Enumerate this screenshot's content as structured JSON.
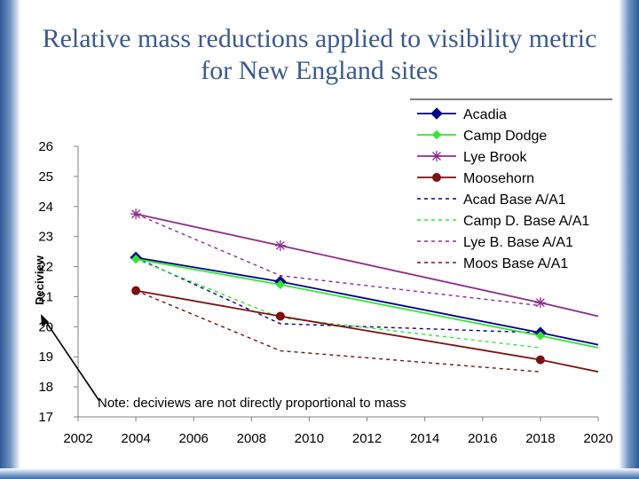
{
  "slide": {
    "title_lines": [
      "Relative mass reductions applied to visibility metric",
      "for New England sites"
    ]
  },
  "chart_data": {
    "type": "line",
    "ylabel": "Deciview",
    "xlim": [
      2002,
      2020
    ],
    "ylim": [
      17,
      26
    ],
    "xticks": [
      2002,
      2004,
      2006,
      2008,
      2010,
      2012,
      2014,
      2016,
      2018,
      2020
    ],
    "yticks": [
      17,
      18,
      19,
      20,
      21,
      22,
      23,
      24,
      25,
      26
    ],
    "series": [
      {
        "name": "Acadia",
        "color": "#00008b",
        "dash": "solid",
        "marker": "diamond",
        "x": [
          2004,
          2009,
          2018,
          2020
        ],
        "y": [
          22.3,
          21.5,
          19.8,
          19.4
        ],
        "markers_on": [
          true,
          true,
          true,
          false
        ]
      },
      {
        "name": "Camp Dodge",
        "color": "#33e633",
        "dash": "solid",
        "marker": "diamond-small",
        "x": [
          2004,
          2009,
          2018,
          2020
        ],
        "y": [
          22.25,
          21.4,
          19.7,
          19.3
        ],
        "markers_on": [
          true,
          true,
          true,
          false
        ]
      },
      {
        "name": "Lye Brook",
        "color": "#8b2e8b",
        "dash": "solid",
        "marker": "asterisk",
        "x": [
          2004,
          2009,
          2018,
          2020
        ],
        "y": [
          23.75,
          22.7,
          20.8,
          20.35
        ],
        "markers_on": [
          true,
          true,
          true,
          false
        ]
      },
      {
        "name": "Moosehorn",
        "color": "#7b1010",
        "dash": "solid",
        "marker": "circle",
        "x": [
          2004,
          2009,
          2018,
          2020
        ],
        "y": [
          21.2,
          20.35,
          18.9,
          18.5
        ],
        "markers_on": [
          true,
          true,
          true,
          false
        ]
      },
      {
        "name": "Acad Base A/A1",
        "color": "#00008b",
        "dash": "dashed",
        "x": [
          2004,
          2009,
          2018
        ],
        "y": [
          22.3,
          20.1,
          19.8
        ]
      },
      {
        "name": "Camp D. Base A/A1",
        "color": "#33e633",
        "dash": "dashed",
        "x": [
          2004,
          2009,
          2018
        ],
        "y": [
          22.25,
          20.3,
          19.3
        ]
      },
      {
        "name": "Lye B. Base A/A1",
        "color": "#8b2e8b",
        "dash": "dashed",
        "x": [
          2004,
          2009,
          2018
        ],
        "y": [
          23.75,
          21.7,
          20.7
        ]
      },
      {
        "name": "Moos Base A/A1",
        "color": "#7b1010",
        "dash": "dashed",
        "x": [
          2004,
          2009,
          2018
        ],
        "y": [
          21.2,
          19.2,
          18.5
        ]
      }
    ],
    "annotation": "Note: deciviews are not directly proportional to mass",
    "legend_position": "top-right",
    "grid": false
  }
}
